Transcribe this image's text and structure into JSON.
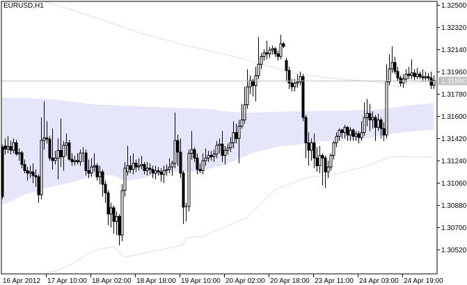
{
  "chart_data": {
    "type": "candlestick",
    "title": "EURUSD,H1",
    "symbol": "EURUSD",
    "timeframe": "H1",
    "ylim": [
      1.3034,
      1.3254
    ],
    "y_ticks": [
      "1.32500",
      "1.32320",
      "1.32140",
      "1.31960",
      "1.31780",
      "1.31600",
      "1.31420",
      "1.31240",
      "1.31060",
      "1.30880",
      "1.30700",
      "1.30520"
    ],
    "x_ticks": [
      {
        "index": 0,
        "label": "16 Apr 2012"
      },
      {
        "index": 16,
        "label": "17 Apr 10:00"
      },
      {
        "index": 32,
        "label": "18 Apr 02:00"
      },
      {
        "index": 48,
        "label": "18 Apr 18:00"
      },
      {
        "index": 64,
        "label": "19 Apr 10:00"
      },
      {
        "index": 80,
        "label": "20 Apr 02:00"
      },
      {
        "index": 96,
        "label": "20 Apr 18:00"
      },
      {
        "index": 112,
        "label": "23 Apr 11:00"
      },
      {
        "index": 128,
        "label": "24 Apr 03:00"
      },
      {
        "index": 144,
        "label": "24 Apr 19:00"
      }
    ],
    "bid_price": "1.31890",
    "grid": false,
    "colors": {
      "candle": "#000000",
      "bull_body": "#ffffff",
      "bear_body": "#000000",
      "band_fill": "#e6e6fa",
      "band_line": "#dcdcf4",
      "bid_line": "#c0c0c0",
      "bid_label_bg": "#c0c0c0"
    },
    "ohlc": [
      [
        1.3135,
        1.3137,
        1.3093,
        1.3095
      ],
      [
        1.3136,
        1.3142,
        1.3129,
        1.31335
      ],
      [
        1.31335,
        1.3144,
        1.313,
        1.31355
      ],
      [
        1.31355,
        1.314,
        1.3129,
        1.31325
      ],
      [
        1.31325,
        1.3142,
        1.313,
        1.31385
      ],
      [
        1.31385,
        1.3141,
        1.3128,
        1.31295
      ],
      [
        1.31295,
        1.3134,
        1.3124,
        1.31305
      ],
      [
        1.31305,
        1.3132,
        1.3118,
        1.3121
      ],
      [
        1.3121,
        1.3125,
        1.3114,
        1.3116
      ],
      [
        1.3116,
        1.3119,
        1.3108,
        1.3114
      ],
      [
        1.3114,
        1.312,
        1.311,
        1.3115
      ],
      [
        1.3115,
        1.3122,
        1.3106,
        1.3112
      ],
      [
        1.3112,
        1.3117,
        1.3103,
        1.3111
      ],
      [
        1.3111,
        1.3113,
        1.309,
        1.30965
      ],
      [
        1.30965,
        1.3159,
        1.3093,
        1.31405
      ],
      [
        1.31405,
        1.3172,
        1.3133,
        1.31425
      ],
      [
        1.31425,
        1.3156,
        1.3138,
        1.31415
      ],
      [
        1.31415,
        1.3144,
        1.3124,
        1.31262
      ],
      [
        1.31262,
        1.315,
        1.3117,
        1.31242
      ],
      [
        1.31242,
        1.3132,
        1.3121,
        1.31262
      ],
      [
        1.31262,
        1.3142,
        1.3109,
        1.31323
      ],
      [
        1.31323,
        1.3158,
        1.3119,
        1.31272
      ],
      [
        1.31272,
        1.314,
        1.3116,
        1.31365
      ],
      [
        1.31365,
        1.3146,
        1.3128,
        1.31385
      ],
      [
        1.31385,
        1.3141,
        1.3124,
        1.31252
      ],
      [
        1.31252,
        1.313,
        1.312,
        1.31232
      ],
      [
        1.31232,
        1.3128,
        1.312,
        1.31242
      ],
      [
        1.31242,
        1.313,
        1.3121,
        1.31232
      ],
      [
        1.31232,
        1.3133,
        1.312,
        1.31303
      ],
      [
        1.31303,
        1.3135,
        1.3123,
        1.31303
      ],
      [
        1.31303,
        1.3133,
        1.3112,
        1.3116
      ],
      [
        1.3116,
        1.3125,
        1.311,
        1.3114
      ],
      [
        1.3114,
        1.3126,
        1.3111,
        1.3119
      ],
      [
        1.3119,
        1.313,
        1.3115,
        1.312
      ],
      [
        1.312,
        1.3122,
        1.3108,
        1.3111
      ],
      [
        1.3111,
        1.312,
        1.3105,
        1.3115
      ],
      [
        1.3115,
        1.3117,
        1.3095,
        1.3105
      ],
      [
        1.3105,
        1.3108,
        1.309,
        1.3098
      ],
      [
        1.3098,
        1.31,
        1.3072,
        1.3081
      ],
      [
        1.3081,
        1.309,
        1.307,
        1.3086
      ],
      [
        1.3086,
        1.3088,
        1.3065,
        1.3075
      ],
      [
        1.3075,
        1.3083,
        1.3064,
        1.3079
      ],
      [
        1.3079,
        1.3081,
        1.30556,
        1.3064
      ],
      [
        1.3064,
        1.3105,
        1.3059,
        1.31
      ],
      [
        1.31,
        1.3123,
        1.3095,
        1.3118
      ],
      [
        1.3115,
        1.3136,
        1.3112,
        1.312
      ],
      [
        1.312,
        1.3128,
        1.3114,
        1.3117
      ],
      [
        1.3117,
        1.313,
        1.3113,
        1.3122
      ],
      [
        1.3122,
        1.3125,
        1.3115,
        1.3119
      ],
      [
        1.3119,
        1.3126,
        1.3116,
        1.312
      ],
      [
        1.312,
        1.3128,
        1.3117,
        1.3121
      ],
      [
        1.3121,
        1.3123,
        1.3113,
        1.3116
      ],
      [
        1.3116,
        1.3123,
        1.3112,
        1.3118
      ],
      [
        1.3118,
        1.3122,
        1.3113,
        1.3117
      ],
      [
        1.3117,
        1.312,
        1.311,
        1.3114
      ],
      [
        1.3114,
        1.312,
        1.3109,
        1.3116
      ],
      [
        1.3116,
        1.3119,
        1.3112,
        1.3115
      ],
      [
        1.3115,
        1.3118,
        1.3107,
        1.3113
      ],
      [
        1.3113,
        1.312,
        1.3106,
        1.3116
      ],
      [
        1.3116,
        1.3121,
        1.3112,
        1.3117
      ],
      [
        1.3117,
        1.3126,
        1.3114,
        1.3119
      ],
      [
        1.3119,
        1.3124,
        1.3112,
        1.3122
      ],
      [
        1.3122,
        1.3163,
        1.3118,
        1.31404
      ],
      [
        1.31404,
        1.3145,
        1.312,
        1.3131
      ],
      [
        1.3131,
        1.3142,
        1.311,
        1.3114
      ],
      [
        1.3114,
        1.3116,
        1.3073,
        1.30865
      ],
      [
        1.30865,
        1.309,
        1.3075,
        1.3087
      ],
      [
        1.3087,
        1.3133,
        1.3083,
        1.313
      ],
      [
        1.313,
        1.3148,
        1.3125,
        1.3133
      ],
      [
        1.3133,
        1.3135,
        1.3123,
        1.31262
      ],
      [
        1.31262,
        1.313,
        1.3113,
        1.3117
      ],
      [
        1.3117,
        1.3122,
        1.3114,
        1.3116
      ],
      [
        1.3116,
        1.313,
        1.3113,
        1.3124
      ],
      [
        1.3124,
        1.3134,
        1.312,
        1.31262
      ],
      [
        1.31262,
        1.3132,
        1.3123,
        1.31283
      ],
      [
        1.31283,
        1.3132,
        1.3124,
        1.31273
      ],
      [
        1.31273,
        1.3133,
        1.3123,
        1.31294
      ],
      [
        1.31294,
        1.314,
        1.3126,
        1.31365
      ],
      [
        1.31365,
        1.3142,
        1.313,
        1.31375
      ],
      [
        1.31375,
        1.3148,
        1.3123,
        1.31283
      ],
      [
        1.31283,
        1.3136,
        1.3121,
        1.31325
      ],
      [
        1.31325,
        1.3138,
        1.3129,
        1.31345
      ],
      [
        1.31345,
        1.3143,
        1.3131,
        1.31385
      ],
      [
        1.31385,
        1.3156,
        1.3134,
        1.31468
      ],
      [
        1.31468,
        1.3154,
        1.3138,
        1.3142
      ],
      [
        1.3142,
        1.3157,
        1.3122,
        1.3152
      ],
      [
        1.3152,
        1.317,
        1.315,
        1.3157
      ],
      [
        1.3157,
        1.3184,
        1.3154,
        1.31693
      ],
      [
        1.31693,
        1.3198,
        1.3166,
        1.31837
      ],
      [
        1.31837,
        1.3193,
        1.3178,
        1.31888
      ],
      [
        1.31888,
        1.319,
        1.3176,
        1.31847
      ],
      [
        1.31847,
        1.32,
        1.3172,
        1.31928
      ],
      [
        1.31928,
        1.32241,
        1.319,
        1.3202
      ],
      [
        1.3202,
        1.3211,
        1.3198,
        1.32082
      ],
      [
        1.32082,
        1.3214,
        1.3205,
        1.32113
      ],
      [
        1.32113,
        1.3221,
        1.3206,
        1.32103
      ],
      [
        1.32103,
        1.3216,
        1.3207,
        1.32135
      ],
      [
        1.32135,
        1.3217,
        1.321,
        1.32146
      ],
      [
        1.32146,
        1.3216,
        1.3208,
        1.32104
      ],
      [
        1.32104,
        1.3213,
        1.3205,
        1.32083
      ],
      [
        1.32083,
        1.32258,
        1.3206,
        1.32185
      ],
      [
        1.32185,
        1.322,
        1.3215,
        1.32165
      ],
      [
        1.3205,
        1.3207,
        1.3188,
        1.3197
      ],
      [
        1.3197,
        1.32,
        1.3182,
        1.31868
      ],
      [
        1.31868,
        1.319,
        1.318,
        1.31838
      ],
      [
        1.31838,
        1.319,
        1.318,
        1.31868
      ],
      [
        1.31868,
        1.3194,
        1.3183,
        1.31878
      ],
      [
        1.31878,
        1.3196,
        1.3185,
        1.3192
      ],
      [
        1.3192,
        1.3194,
        1.3156,
        1.3159
      ],
      [
        1.3159,
        1.3161,
        1.3126,
        1.31385
      ],
      [
        1.31385,
        1.3147,
        1.312,
        1.31325
      ],
      [
        1.31325,
        1.3142,
        1.3124,
        1.31385
      ],
      [
        1.31385,
        1.3146,
        1.3118,
        1.31262
      ],
      [
        1.31262,
        1.3135,
        1.3115,
        1.312
      ],
      [
        1.312,
        1.3136,
        1.3114,
        1.31283
      ],
      [
        1.31283,
        1.313,
        1.3104,
        1.31262
      ],
      [
        1.31262,
        1.3128,
        1.3102,
        1.3115
      ],
      [
        1.3115,
        1.3124,
        1.311,
        1.3119
      ],
      [
        1.3119,
        1.313,
        1.3116,
        1.31283
      ],
      [
        1.31283,
        1.314,
        1.3125,
        1.31385
      ],
      [
        1.31385,
        1.3147,
        1.3135,
        1.31437
      ],
      [
        1.31437,
        1.315,
        1.314,
        1.31488
      ],
      [
        1.31488,
        1.315,
        1.3142,
        1.31468
      ],
      [
        1.31468,
        1.3153,
        1.3142,
        1.3151
      ],
      [
        1.3151,
        1.3152,
        1.314,
        1.31448
      ],
      [
        1.31448,
        1.3151,
        1.314,
        1.31488
      ],
      [
        1.31488,
        1.315,
        1.314,
        1.31437
      ],
      [
        1.31437,
        1.3148,
        1.314,
        1.31458
      ],
      [
        1.31458,
        1.3148,
        1.3138,
        1.31427
      ],
      [
        1.31427,
        1.3156,
        1.314,
        1.31468
      ],
      [
        1.31468,
        1.3171,
        1.3144,
        1.3159
      ],
      [
        1.3159,
        1.3174,
        1.3152,
        1.31622
      ],
      [
        1.31622,
        1.317,
        1.3148,
        1.3157
      ],
      [
        1.3157,
        1.3164,
        1.315,
        1.3159
      ],
      [
        1.3159,
        1.3161,
        1.314,
        1.3151
      ],
      [
        1.3151,
        1.3162,
        1.3148,
        1.3157
      ],
      [
        1.3157,
        1.3159,
        1.3142,
        1.315
      ],
      [
        1.315,
        1.3155,
        1.314,
        1.31448
      ],
      [
        1.31448,
        1.3202,
        1.3142,
        1.31878
      ],
      [
        1.31878,
        1.321,
        1.3185,
        1.31983
      ],
      [
        1.31983,
        1.32165,
        1.3195,
        1.32034
      ],
      [
        1.32034,
        1.3208,
        1.3194,
        1.31962
      ],
      [
        1.31962,
        1.32,
        1.3188,
        1.3191
      ],
      [
        1.3191,
        1.3193,
        1.3184,
        1.31868
      ],
      [
        1.31868,
        1.3194,
        1.3183,
        1.319
      ],
      [
        1.319,
        1.3198,
        1.3187,
        1.3194
      ],
      [
        1.3194,
        1.32,
        1.319,
        1.3193
      ],
      [
        1.3193,
        1.3206,
        1.319,
        1.3195
      ],
      [
        1.3195,
        1.3198,
        1.3189,
        1.3192
      ],
      [
        1.3192,
        1.3199,
        1.319,
        1.3194
      ],
      [
        1.3194,
        1.3196,
        1.319,
        1.3192
      ],
      [
        1.3192,
        1.3198,
        1.3188,
        1.3191
      ],
      [
        1.3191,
        1.3196,
        1.3188,
        1.3192
      ],
      [
        1.3192,
        1.3195,
        1.3188,
        1.3191
      ],
      [
        1.3191,
        1.3196,
        1.3182,
        1.3185
      ],
      [
        1.3185,
        1.3193,
        1.3182,
        1.3189
      ]
    ],
    "band_fill": {
      "upper": [
        [
          0,
          1.31752
        ],
        [
          16,
          1.31741
        ],
        [
          25,
          1.31719
        ],
        [
          33,
          1.31696
        ],
        [
          50,
          1.31679
        ],
        [
          75,
          1.31657
        ],
        [
          82,
          1.31635
        ],
        [
          90,
          1.31629
        ],
        [
          104,
          1.3164
        ],
        [
          125,
          1.31646
        ],
        [
          135,
          1.31651
        ],
        [
          145,
          1.31685
        ],
        [
          155,
          1.31708
        ]
      ],
      "lower": [
        [
          0,
          1.30882
        ],
        [
          8,
          1.30966
        ],
        [
          16,
          1.31022
        ],
        [
          25,
          1.31067
        ],
        [
          33,
          1.31118
        ],
        [
          40,
          1.31123
        ],
        [
          44,
          1.31078
        ],
        [
          50,
          1.31095
        ],
        [
          60,
          1.31146
        ],
        [
          70,
          1.31151
        ],
        [
          80,
          1.31207
        ],
        [
          90,
          1.31303
        ],
        [
          100,
          1.31359
        ],
        [
          106,
          1.3137
        ],
        [
          117,
          1.31399
        ],
        [
          130,
          1.31415
        ],
        [
          140,
          1.3146
        ],
        [
          150,
          1.31483
        ],
        [
          155,
          1.31488
        ]
      ]
    },
    "outer_upper_line": [
      [
        15,
        1.32539
      ],
      [
        25,
        1.3246
      ],
      [
        37,
        1.3237
      ],
      [
        50,
        1.32269
      ],
      [
        67,
        1.32168
      ],
      [
        82,
        1.3209
      ],
      [
        100,
        1.31977
      ],
      [
        106,
        1.31944
      ],
      [
        117,
        1.3191
      ],
      [
        135,
        1.31876
      ],
      [
        142,
        1.31837
      ],
      [
        147,
        1.31865
      ],
      [
        155,
        1.31893
      ]
    ],
    "outer_lower_line": [
      [
        17,
        1.3034
      ],
      [
        19,
        1.30348
      ],
      [
        25,
        1.30404
      ],
      [
        33,
        1.30517
      ],
      [
        40,
        1.30545
      ],
      [
        44,
        1.3046
      ],
      [
        50,
        1.30488
      ],
      [
        62,
        1.30545
      ],
      [
        65,
        1.30561
      ],
      [
        66,
        1.30618
      ],
      [
        72,
        1.30629
      ],
      [
        88,
        1.30781
      ],
      [
        98,
        1.31005
      ],
      [
        105,
        1.31067
      ],
      [
        110,
        1.31106
      ],
      [
        120,
        1.31134
      ],
      [
        130,
        1.31191
      ],
      [
        140,
        1.31275
      ],
      [
        150,
        1.31269
      ],
      [
        155,
        1.31269
      ]
    ]
  }
}
